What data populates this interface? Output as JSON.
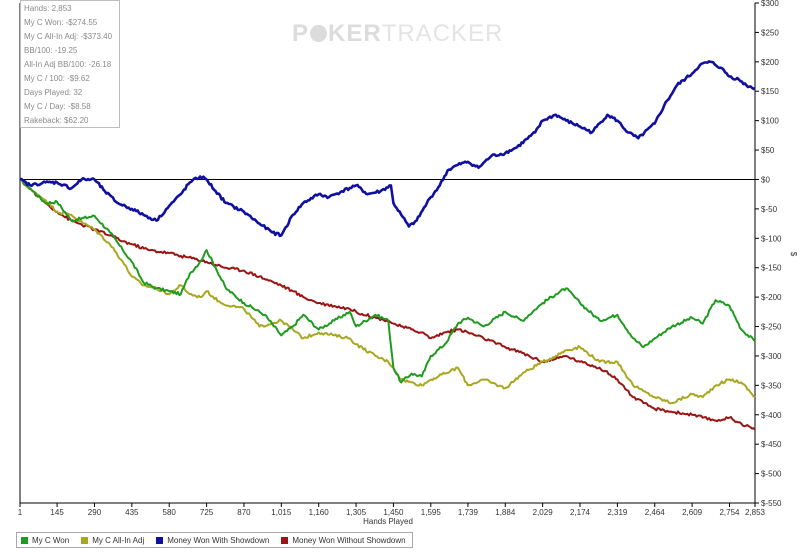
{
  "stats": {
    "hands": "Hands: 2,853",
    "my_c_won": "My C Won: -$274.55",
    "my_c_allin_adj": "My C All-In Adj: -$373.40",
    "bb_100": "BB/100: -19.25",
    "allin_adj_bb_100": "All-In Adj BB/100: -26.18",
    "my_c_100": "My C / 100: -$9.62",
    "days_played": "Days Played: 32",
    "my_c_day": "My C / Day: -$8.58",
    "rakeback": "Rakeback: $62.20"
  },
  "watermark": {
    "part1": "P",
    "part2": "KER",
    "part3": "TRACKER"
  },
  "chart_data": {
    "type": "line",
    "xlabel": "Hands Played",
    "ylabel": "$",
    "xlim": [
      1,
      2853
    ],
    "ylim": [
      -550,
      300
    ],
    "x_ticks": [
      1,
      145,
      290,
      435,
      580,
      725,
      870,
      1015,
      1160,
      1305,
      1450,
      1595,
      1739,
      1884,
      2029,
      2174,
      2319,
      2464,
      2609,
      2754,
      2853
    ],
    "x_tick_labels": [
      "1",
      "145",
      "290",
      "435",
      "580",
      "725",
      "870",
      "1,015",
      "1,160",
      "1,305",
      "1,450",
      "1,595",
      "1,739",
      "1,884",
      "2,029",
      "2,174",
      "2,319",
      "2,464",
      "2,609",
      "2,754",
      "2,853"
    ],
    "y_ticks": [
      300,
      250,
      200,
      150,
      100,
      50,
      0,
      -50,
      -100,
      -150,
      -200,
      -250,
      -300,
      -350,
      -400,
      -450,
      -500,
      -550
    ],
    "y_tick_labels": [
      "$300",
      "$250",
      "$200",
      "$150",
      "$100",
      "$50",
      "$0",
      "$-50",
      "$-100",
      "$-150",
      "$-200",
      "$-250",
      "$-300",
      "$-350",
      "$-400",
      "$-450",
      "$-500",
      "$-550"
    ],
    "grid": false,
    "legend_position": "bottom-left",
    "series": [
      {
        "name": "My C Won",
        "color": "#1f9b1f",
        "x": [
          1,
          40,
          100,
          145,
          200,
          290,
          350,
          400,
          435,
          480,
          530,
          580,
          625,
          660,
          700,
          725,
          760,
          800,
          870,
          950,
          1015,
          1060,
          1100,
          1160,
          1220,
          1280,
          1305,
          1380,
          1430,
          1450,
          1480,
          1520,
          1560,
          1595,
          1650,
          1700,
          1739,
          1800,
          1884,
          1950,
          2029,
          2080,
          2120,
          2174,
          2250,
          2319,
          2380,
          2420,
          2464,
          2530,
          2609,
          2650,
          2700,
          2754,
          2800,
          2853
        ],
        "y": [
          0,
          -15,
          -40,
          -38,
          -70,
          -62,
          -90,
          -120,
          -140,
          -175,
          -185,
          -190,
          -195,
          -160,
          -140,
          -120,
          -150,
          -185,
          -210,
          -230,
          -265,
          -250,
          -230,
          -255,
          -240,
          -225,
          -250,
          -230,
          -240,
          -320,
          -345,
          -330,
          -335,
          -300,
          -280,
          -245,
          -235,
          -250,
          -225,
          -240,
          -210,
          -195,
          -185,
          -210,
          -240,
          -230,
          -270,
          -285,
          -270,
          -250,
          -235,
          -245,
          -205,
          -215,
          -255,
          -275
        ]
      },
      {
        "name": "My C All-In Adj",
        "color": "#a8a820",
        "x": [
          1,
          50,
          100,
          145,
          200,
          250,
          290,
          350,
          400,
          435,
          480,
          530,
          580,
          625,
          660,
          700,
          725,
          780,
          870,
          930,
          1015,
          1060,
          1100,
          1160,
          1220,
          1280,
          1305,
          1380,
          1430,
          1450,
          1480,
          1520,
          1560,
          1595,
          1650,
          1700,
          1739,
          1800,
          1884,
          1950,
          2029,
          2080,
          2120,
          2174,
          2250,
          2319,
          2380,
          2420,
          2464,
          2530,
          2609,
          2650,
          2700,
          2754,
          2800,
          2853
        ],
        "y": [
          0,
          -20,
          -35,
          -55,
          -60,
          -75,
          -85,
          -110,
          -140,
          -165,
          -180,
          -185,
          -195,
          -180,
          -195,
          -200,
          -190,
          -210,
          -220,
          -250,
          -240,
          -255,
          -270,
          -260,
          -265,
          -270,
          -280,
          -300,
          -310,
          -320,
          -340,
          -345,
          -350,
          -340,
          -330,
          -320,
          -350,
          -340,
          -355,
          -330,
          -310,
          -300,
          -290,
          -285,
          -310,
          -310,
          -350,
          -360,
          -370,
          -380,
          -365,
          -370,
          -350,
          -340,
          -345,
          -370
        ]
      },
      {
        "name": "Money Won With Showdown",
        "color": "#1010a0",
        "x": [
          1,
          40,
          100,
          145,
          200,
          240,
          290,
          330,
          380,
          435,
          480,
          530,
          580,
          625,
          660,
          700,
          725,
          760,
          800,
          870,
          930,
          980,
          1015,
          1060,
          1100,
          1160,
          1200,
          1250,
          1305,
          1350,
          1400,
          1440,
          1450,
          1480,
          1510,
          1540,
          1580,
          1595,
          1630,
          1660,
          1700,
          1739,
          1780,
          1830,
          1884,
          1930,
          2000,
          2029,
          2080,
          2120,
          2174,
          2220,
          2280,
          2319,
          2360,
          2400,
          2464,
          2500,
          2550,
          2609,
          2640,
          2680,
          2720,
          2754,
          2790,
          2820,
          2853
        ],
        "y": [
          0,
          -10,
          -5,
          -5,
          -15,
          0,
          0,
          -20,
          -40,
          -50,
          -60,
          -70,
          -45,
          -25,
          -5,
          5,
          0,
          -20,
          -40,
          -55,
          -75,
          -90,
          -95,
          -60,
          -40,
          -25,
          -30,
          -20,
          -10,
          -25,
          -20,
          -10,
          -40,
          -60,
          -80,
          -70,
          -40,
          -30,
          -10,
          15,
          25,
          30,
          20,
          40,
          45,
          55,
          80,
          100,
          110,
          100,
          90,
          80,
          110,
          100,
          80,
          70,
          95,
          125,
          160,
          180,
          195,
          200,
          190,
          175,
          170,
          160,
          155
        ]
      },
      {
        "name": "Money Won Without Showdown",
        "color": "#9a1414",
        "x": [
          1,
          50,
          100,
          145,
          200,
          290,
          350,
          400,
          435,
          500,
          580,
          625,
          680,
          725,
          760,
          800,
          870,
          930,
          1015,
          1060,
          1100,
          1160,
          1220,
          1280,
          1305,
          1380,
          1430,
          1450,
          1480,
          1520,
          1560,
          1595,
          1650,
          1700,
          1739,
          1800,
          1884,
          1950,
          2029,
          2080,
          2120,
          2174,
          2250,
          2319,
          2380,
          2420,
          2464,
          2530,
          2609,
          2650,
          2700,
          2754,
          2800,
          2853
        ],
        "y": [
          0,
          -20,
          -40,
          -55,
          -70,
          -85,
          -95,
          -105,
          -110,
          -120,
          -125,
          -130,
          -135,
          -140,
          -145,
          -150,
          -155,
          -165,
          -180,
          -190,
          -200,
          -210,
          -215,
          -220,
          -225,
          -235,
          -240,
          -245,
          -250,
          -255,
          -260,
          -270,
          -260,
          -255,
          -260,
          -270,
          -285,
          -295,
          -310,
          -305,
          -300,
          -310,
          -320,
          -340,
          -370,
          -380,
          -390,
          -395,
          -400,
          -405,
          -410,
          -405,
          -415,
          -425
        ]
      }
    ]
  }
}
